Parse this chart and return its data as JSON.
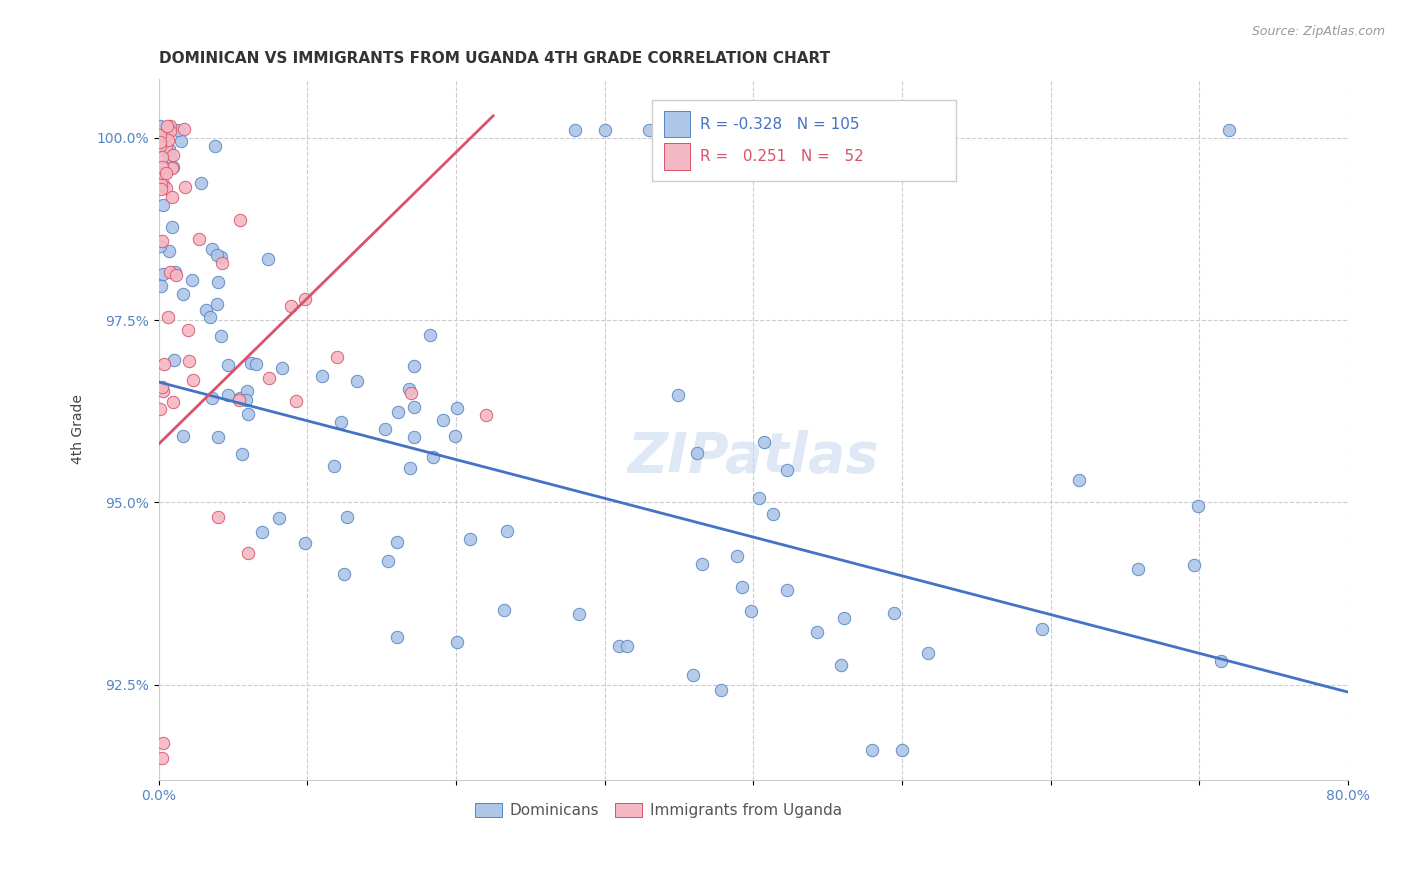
{
  "title": "DOMINICAN VS IMMIGRANTS FROM UGANDA 4TH GRADE CORRELATION CHART",
  "source": "Source: ZipAtlas.com",
  "ylabel": "4th Grade",
  "yticks": [
    0.925,
    0.95,
    0.975,
    1.0
  ],
  "ytick_labels": [
    "92.5%",
    "95.0%",
    "97.5%",
    "100.0%"
  ],
  "xmin": 0.0,
  "xmax": 0.8,
  "ymin": 0.912,
  "ymax": 1.008,
  "blue_color": "#aec6e8",
  "pink_color": "#f4b8c4",
  "blue_edge_color": "#5585c5",
  "pink_edge_color": "#d9536a",
  "blue_line_color": "#4472c4",
  "pink_line_color": "#d9536a",
  "tick_color": "#5585c5",
  "watermark": "ZIPatlas",
  "legend_blue_R": "-0.328",
  "legend_blue_N": "105",
  "legend_pink_R": "0.251",
  "legend_pink_N": "52",
  "blue_trend_x": [
    0.0,
    0.8
  ],
  "blue_trend_y": [
    0.9665,
    0.924
  ],
  "pink_trend_x": [
    0.0,
    0.225
  ],
  "pink_trend_y": [
    0.958,
    1.003
  ],
  "title_fontsize": 11,
  "axis_label_fontsize": 10,
  "tick_fontsize": 10,
  "watermark_fontsize": 40,
  "marker_size": 80
}
